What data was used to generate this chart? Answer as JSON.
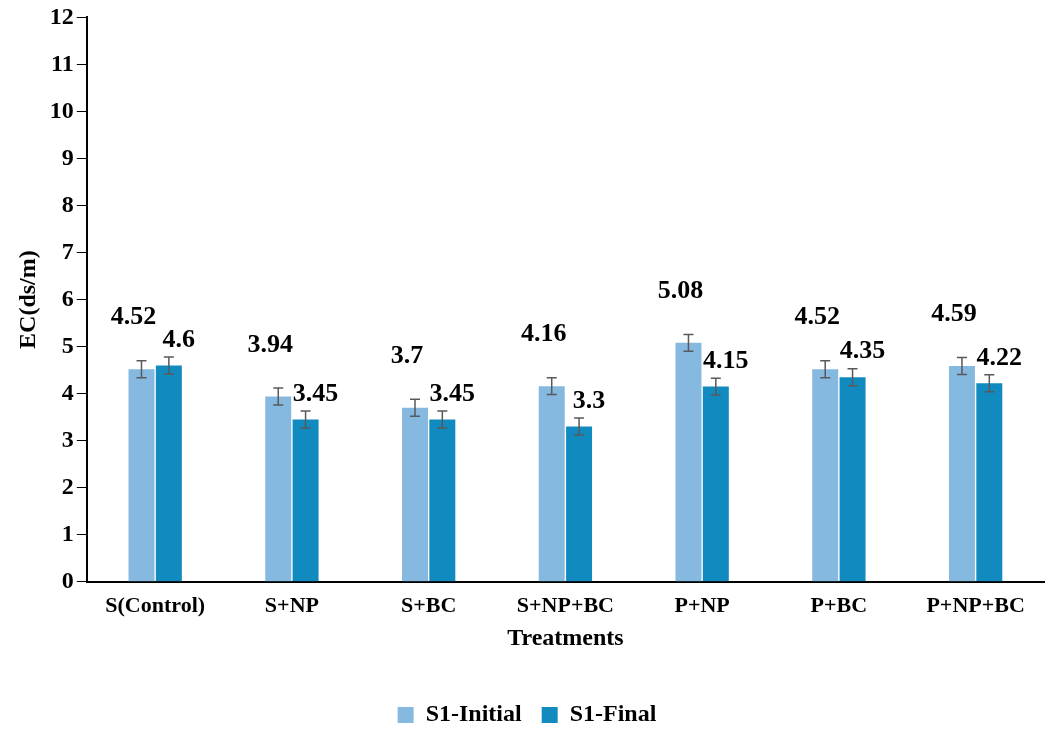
{
  "chart_data": {
    "type": "bar",
    "xlabel": "Treatments",
    "ylabel": "EC(ds/m)",
    "categories": [
      "S(Control)",
      "S+NP",
      "S+BC",
      "S+NP+BC",
      "P+NP",
      "P+BC",
      "P+NP+BC"
    ],
    "series": [
      {
        "name": "S1-Initial",
        "color": "#85b9e0",
        "values": [
          4.52,
          3.94,
          3.7,
          4.16,
          5.08,
          4.52,
          4.59
        ],
        "errors": [
          0.18,
          0.18,
          0.18,
          0.18,
          0.18,
          0.18,
          0.18
        ]
      },
      {
        "name": "S1-Final",
        "color": "#118bbf",
        "values": [
          4.6,
          3.45,
          3.45,
          3.3,
          4.15,
          4.35,
          4.22
        ],
        "errors": [
          0.18,
          0.18,
          0.18,
          0.18,
          0.18,
          0.18,
          0.18
        ]
      }
    ],
    "ylim": [
      0,
      12
    ],
    "yticks": [
      0,
      1,
      2,
      3,
      4,
      5,
      6,
      7,
      8,
      9,
      10,
      11,
      12
    ],
    "grid": false,
    "legend": "bottom",
    "data_labels": true
  }
}
